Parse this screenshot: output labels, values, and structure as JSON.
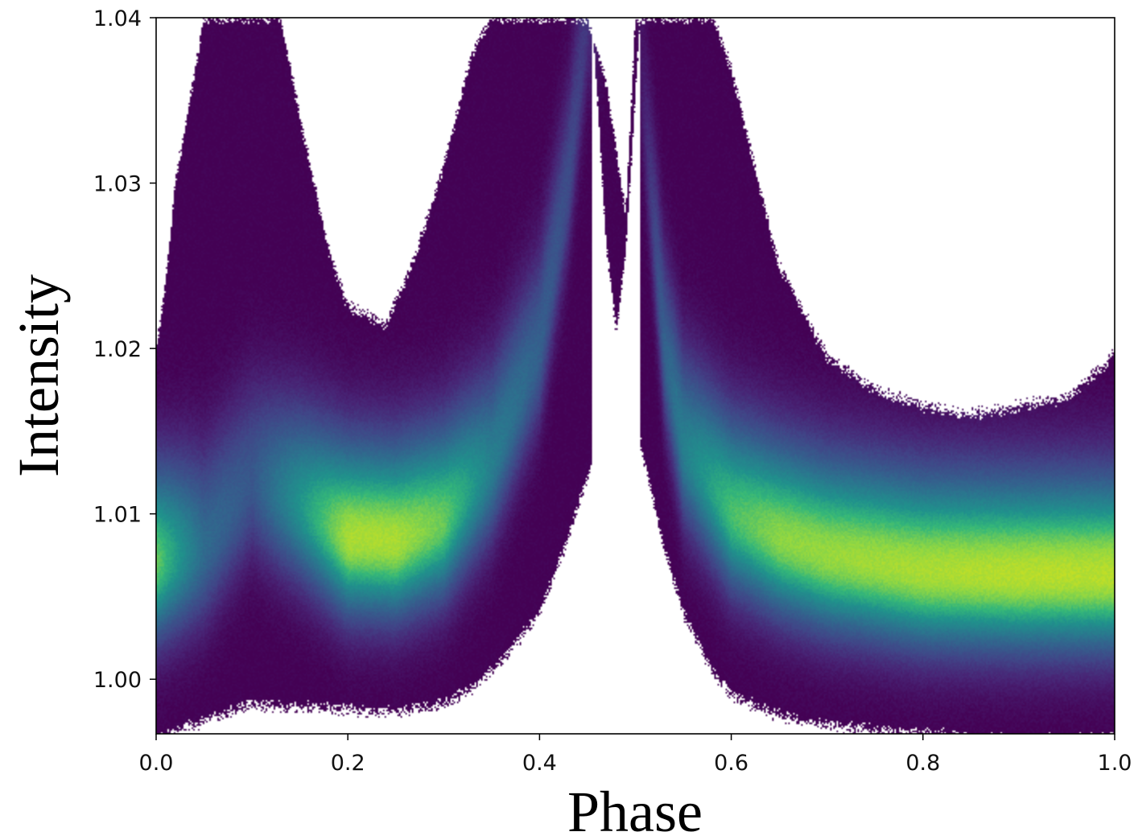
{
  "chart_data": {
    "type": "heatmap",
    "title": "",
    "xlabel": "Phase",
    "ylabel": "Intensity",
    "xlim": [
      0.0,
      1.0
    ],
    "ylim": [
      0.9967,
      1.04
    ],
    "x_ticks": [
      {
        "value": 0.0,
        "label": "0.0"
      },
      {
        "value": 0.2,
        "label": "0.2"
      },
      {
        "value": 0.4,
        "label": "0.4"
      },
      {
        "value": 0.6,
        "label": "0.6"
      },
      {
        "value": 0.8,
        "label": "0.8"
      },
      {
        "value": 1.0,
        "label": "1.0"
      }
    ],
    "y_ticks": [
      {
        "value": 1.0,
        "label": "1.00"
      },
      {
        "value": 1.01,
        "label": "1.01"
      },
      {
        "value": 1.02,
        "label": "1.02"
      },
      {
        "value": 1.03,
        "label": "1.03"
      },
      {
        "value": 1.04,
        "label": "1.04"
      }
    ],
    "colormap": "viridis",
    "grid": false,
    "density_ridge": {
      "phase": [
        0.0,
        0.05,
        0.1,
        0.15,
        0.2,
        0.25,
        0.3,
        0.35,
        0.4,
        0.43,
        0.45,
        0.47,
        0.5,
        0.53,
        0.55,
        0.6,
        0.65,
        0.7,
        0.8,
        0.9,
        1.0
      ],
      "center": [
        1.007,
        1.008,
        1.012,
        1.0105,
        1.0085,
        1.0083,
        1.0095,
        1.013,
        1.02,
        1.03,
        1.04,
        1.04,
        1.04,
        1.02,
        1.014,
        1.01,
        1.0085,
        1.0075,
        1.0065,
        1.0063,
        1.0063
      ],
      "intensity_peak": [
        0.85,
        0.45,
        0.35,
        0.65,
        0.95,
        0.95,
        0.85,
        0.55,
        0.4,
        0.3,
        0.2,
        0.0,
        0.0,
        0.4,
        0.55,
        0.8,
        0.9,
        0.92,
        0.95,
        0.97,
        0.97
      ]
    },
    "data_upper_edge": {
      "phase": [
        0.0,
        0.01,
        0.02,
        0.05,
        0.1,
        0.13,
        0.15,
        0.18,
        0.2,
        0.22,
        0.24,
        0.27,
        0.3,
        0.33,
        0.35,
        0.38,
        0.4,
        0.45,
        0.47,
        0.49,
        0.5,
        0.55,
        0.58,
        0.6,
        0.62,
        0.65,
        0.7,
        0.75,
        0.8,
        0.85,
        0.9,
        0.95,
        0.99,
        1.0
      ],
      "y": [
        1.02,
        1.024,
        1.03,
        1.04,
        1.04,
        1.04,
        1.034,
        1.026,
        1.0225,
        1.022,
        1.0215,
        1.0255,
        1.031,
        1.038,
        1.04,
        1.04,
        1.04,
        1.04,
        1.036,
        1.028,
        1.04,
        1.04,
        1.04,
        1.037,
        1.032,
        1.025,
        1.0195,
        1.0175,
        1.0165,
        1.016,
        1.0165,
        1.017,
        1.019,
        1.02
      ]
    },
    "data_lower_edge": {
      "phase": [
        0.0,
        0.05,
        0.1,
        0.15,
        0.2,
        0.25,
        0.3,
        0.33,
        0.36,
        0.4,
        0.43,
        0.46,
        0.48,
        0.5,
        0.51,
        0.53,
        0.55,
        0.58,
        0.6,
        0.65,
        0.7,
        0.8,
        0.9,
        1.0
      ],
      "y": [
        0.9964,
        0.9975,
        0.9985,
        0.9983,
        0.9982,
        0.998,
        0.9985,
        0.9995,
        1.001,
        1.004,
        1.0085,
        1.014,
        1.02,
        1.016,
        1.013,
        1.008,
        1.004,
        1.0005,
        0.999,
        0.9978,
        0.9972,
        0.9967,
        0.9963,
        0.9964
      ]
    },
    "gap_region": {
      "phase": [
        0.455,
        0.47,
        0.48,
        0.49,
        0.505
      ],
      "y_top": [
        1.04,
        1.026,
        1.021,
        1.026,
        1.04
      ]
    }
  }
}
